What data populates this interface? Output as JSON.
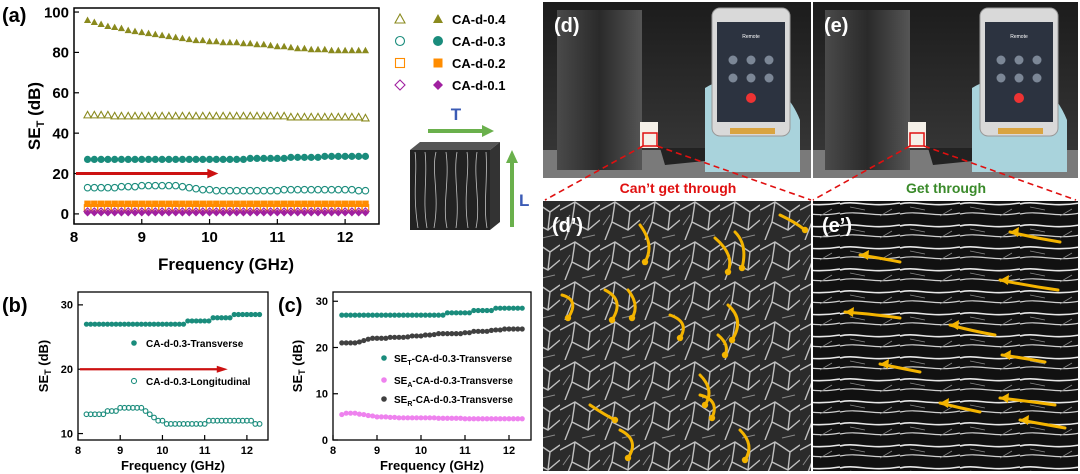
{
  "panel_labels": {
    "a": "(a)",
    "b": "(b)",
    "c": "(c)",
    "d": "(d)",
    "e": "(e)",
    "dp": "(d’)",
    "ep": "(e’)"
  },
  "annotations": {
    "cant_get_through": "Can’t get through",
    "get_through": "Get through",
    "arrow_T": "T",
    "arrow_L": "L"
  },
  "colors": {
    "olive": "#8a8a1e",
    "teal": "#1a8c7c",
    "orange": "#ff8c00",
    "purple": "#a020a0",
    "pink": "#ee82ee",
    "gray": "#404040",
    "red": "#cc1111",
    "green_arrow": "#6ab04c",
    "blue_T": "#3b5bb5",
    "cant_text": "#e01010",
    "get_text": "#3a8a2a",
    "sem_arrow": "#f4b400"
  },
  "chart_data": [
    {
      "id": "a",
      "type": "scatter",
      "xlabel": "Frequency (GHz)",
      "ylabel": "SE_T (dB)",
      "xlim": [
        8,
        12.5
      ],
      "ylim": [
        -5,
        102
      ],
      "xticks": [
        8,
        9,
        10,
        11,
        12
      ],
      "yticks": [
        0,
        20,
        40,
        60,
        80,
        100
      ],
      "x": [
        8.2,
        8.3,
        8.4,
        8.5,
        8.6,
        8.7,
        8.8,
        8.9,
        9.0,
        9.1,
        9.2,
        9.3,
        9.4,
        9.5,
        9.6,
        9.7,
        9.8,
        9.9,
        10.0,
        10.1,
        10.2,
        10.3,
        10.4,
        10.5,
        10.6,
        10.7,
        10.8,
        10.9,
        11.0,
        11.1,
        11.2,
        11.3,
        11.4,
        11.5,
        11.6,
        11.7,
        11.8,
        11.9,
        12.0,
        12.1,
        12.2,
        12.3
      ],
      "series": [
        {
          "name": "CA-d-0.4",
          "marker": "triangle",
          "filled": true,
          "color": "olive",
          "values": [
            96,
            95,
            94,
            93,
            92.5,
            92,
            91,
            90.5,
            90,
            89.5,
            89,
            88.5,
            88,
            87.5,
            87,
            86.5,
            86,
            86,
            85.5,
            85.5,
            85,
            85,
            85,
            84.5,
            84.5,
            84,
            84,
            83.5,
            83,
            83,
            82.5,
            82,
            82,
            81.5,
            81.5,
            81.5,
            81,
            81,
            81,
            81,
            81,
            81
          ]
        },
        {
          "name": "",
          "marker": "triangle",
          "filled": false,
          "color": "olive",
          "values": [
            49,
            49,
            49,
            49,
            48.5,
            48.5,
            48.5,
            48.5,
            48.5,
            48.5,
            48.5,
            48.5,
            48.5,
            48.5,
            48.5,
            48.5,
            48.5,
            48.5,
            48.5,
            48.5,
            48.5,
            48.5,
            48.5,
            48.5,
            48.5,
            48.5,
            48.5,
            48.5,
            48.5,
            48.5,
            48,
            48,
            48,
            48,
            48,
            48,
            48,
            48,
            48,
            48,
            48,
            47.5
          ]
        },
        {
          "name": "CA-d-0.3",
          "marker": "circle",
          "filled": true,
          "color": "teal",
          "values": [
            27,
            27,
            27,
            27,
            27,
            27,
            27,
            27,
            27,
            27,
            27,
            27,
            27,
            27,
            27,
            27,
            27,
            27,
            27,
            27,
            27,
            27,
            27,
            27,
            27.5,
            27.5,
            27.5,
            27.5,
            27.5,
            27.5,
            28,
            28,
            28,
            28,
            28,
            28.5,
            28.5,
            28.5,
            28.5,
            28.5,
            28.5,
            28.5
          ]
        },
        {
          "name": "",
          "marker": "circle",
          "filled": false,
          "color": "teal",
          "values": [
            13,
            13,
            13,
            13,
            13,
            13.5,
            13.5,
            13.5,
            14,
            14,
            14,
            14,
            14,
            14,
            13.5,
            13,
            12.5,
            12,
            12,
            11.5,
            11.5,
            11.5,
            11.5,
            11.5,
            11.5,
            11.5,
            11.5,
            11.5,
            11.5,
            12,
            12,
            12,
            12,
            12,
            12,
            12,
            12,
            12,
            12,
            12,
            11.5,
            11.5
          ]
        },
        {
          "name": "CA-d-0.2",
          "marker": "square",
          "filled": true,
          "color": "orange",
          "values": [
            5,
            5,
            5,
            5,
            5,
            5,
            5,
            5,
            5,
            5,
            5,
            5,
            5,
            5,
            5,
            5,
            5,
            5,
            5,
            5,
            5,
            5,
            5,
            5,
            5,
            5,
            5,
            5,
            5,
            5,
            5,
            5,
            5,
            5,
            5,
            5,
            5,
            5,
            5,
            5,
            5,
            5
          ]
        },
        {
          "name": "",
          "marker": "square",
          "filled": false,
          "color": "orange",
          "values": [
            3,
            3,
            3,
            3,
            3,
            3,
            3,
            3,
            3,
            3,
            3,
            3,
            3,
            3,
            3,
            3,
            3,
            3,
            3,
            3,
            3,
            3,
            3,
            3,
            3,
            3,
            3,
            3,
            3,
            3,
            3,
            3,
            3,
            3,
            3,
            3,
            3,
            3,
            3,
            3,
            3,
            3
          ]
        },
        {
          "name": "CA-d-0.1",
          "marker": "diamond",
          "filled": true,
          "color": "purple",
          "values": [
            0.5,
            0.5,
            0.5,
            0.5,
            0.5,
            0.5,
            0.5,
            0.5,
            0.5,
            0.5,
            0.5,
            0.5,
            0.5,
            0.5,
            0.5,
            0.5,
            0.5,
            0.5,
            0.5,
            0.5,
            0.5,
            0.5,
            0.5,
            0.5,
            0.5,
            0.5,
            0.5,
            0.5,
            0.5,
            0.5,
            0.5,
            0.5,
            0.5,
            0.5,
            0.5,
            0.5,
            0.5,
            0.5,
            0.5,
            0.5,
            0.5,
            0.5
          ]
        },
        {
          "name": "",
          "marker": "diamond",
          "filled": false,
          "color": "purple",
          "values": [
            1.2,
            1.2,
            1.2,
            1.2,
            1.2,
            1.2,
            1.2,
            1.2,
            1.2,
            1.2,
            1.2,
            1.2,
            1.2,
            1.2,
            1.2,
            1.2,
            1.2,
            1.2,
            1.2,
            1.2,
            1.2,
            1.2,
            1.2,
            1.2,
            1.2,
            1.2,
            1.2,
            1.2,
            1.2,
            1.2,
            1.2,
            1.2,
            1.2,
            1.2,
            1.2,
            1.2,
            1.2,
            1.2,
            1.2,
            1.2,
            1.2,
            1.2
          ]
        }
      ],
      "threshold_arrow": {
        "y": 20,
        "x_end": 10.1
      }
    },
    {
      "id": "b",
      "type": "scatter",
      "xlabel": "Frequency (GHz)",
      "ylabel": "SE_T (dB)",
      "xlim": [
        8,
        12.5
      ],
      "ylim": [
        9,
        32
      ],
      "xticks": [
        8,
        9,
        10,
        11,
        12
      ],
      "yticks": [
        10,
        20,
        30
      ],
      "x": [
        8.2,
        8.3,
        8.4,
        8.5,
        8.6,
        8.7,
        8.8,
        8.9,
        9.0,
        9.1,
        9.2,
        9.3,
        9.4,
        9.5,
        9.6,
        9.7,
        9.8,
        9.9,
        10.0,
        10.1,
        10.2,
        10.3,
        10.4,
        10.5,
        10.6,
        10.7,
        10.8,
        10.9,
        11.0,
        11.1,
        11.2,
        11.3,
        11.4,
        11.5,
        11.6,
        11.7,
        11.8,
        11.9,
        12.0,
        12.1,
        12.2,
        12.3
      ],
      "series": [
        {
          "name": "CA-d-0.3-Transverse",
          "marker": "circle",
          "filled": true,
          "color": "teal",
          "values": [
            27,
            27,
            27,
            27,
            27,
            27,
            27,
            27,
            27,
            27,
            27,
            27,
            27,
            27,
            27,
            27,
            27,
            27,
            27,
            27,
            27,
            27,
            27,
            27,
            27.5,
            27.5,
            27.5,
            27.5,
            27.5,
            27.5,
            28,
            28,
            28,
            28,
            28,
            28.5,
            28.5,
            28.5,
            28.5,
            28.5,
            28.5,
            28.5
          ]
        },
        {
          "name": "CA-d-0.3-Longitudinal",
          "marker": "circle",
          "filled": false,
          "color": "teal",
          "values": [
            13,
            13,
            13,
            13,
            13,
            13.5,
            13.5,
            13.5,
            14,
            14,
            14,
            14,
            14,
            14,
            13.5,
            13,
            12.5,
            12,
            12,
            11.5,
            11.5,
            11.5,
            11.5,
            11.5,
            11.5,
            11.5,
            11.5,
            11.5,
            11.5,
            12,
            12,
            12,
            12,
            12,
            12,
            12,
            12,
            12,
            12,
            12,
            11.5,
            11.5
          ]
        }
      ],
      "threshold_arrow": {
        "y": 20,
        "x_end": 11.5
      }
    },
    {
      "id": "c",
      "type": "scatter",
      "xlabel": "Frequency (GHz)",
      "ylabel": "SE_T (dB)",
      "xlim": [
        8,
        12.5
      ],
      "ylim": [
        0,
        32
      ],
      "xticks": [
        8,
        9,
        10,
        11,
        12
      ],
      "yticks": [
        0,
        10,
        20,
        30
      ],
      "x": [
        8.2,
        8.3,
        8.4,
        8.5,
        8.6,
        8.7,
        8.8,
        8.9,
        9.0,
        9.1,
        9.2,
        9.3,
        9.4,
        9.5,
        9.6,
        9.7,
        9.8,
        9.9,
        10.0,
        10.1,
        10.2,
        10.3,
        10.4,
        10.5,
        10.6,
        10.7,
        10.8,
        10.9,
        11.0,
        11.1,
        11.2,
        11.3,
        11.4,
        11.5,
        11.6,
        11.7,
        11.8,
        11.9,
        12.0,
        12.1,
        12.2,
        12.3
      ],
      "series": [
        {
          "name": "SE_T-CA-d-0.3-Transverse",
          "marker": "circle",
          "filled": true,
          "color": "teal",
          "values": [
            27,
            27,
            27,
            27,
            27,
            27,
            27,
            27,
            27,
            27,
            27,
            27,
            27,
            27,
            27,
            27,
            27,
            27,
            27,
            27,
            27,
            27,
            27,
            27,
            27.5,
            27.5,
            27.5,
            27.5,
            27.5,
            27.5,
            28,
            28,
            28,
            28,
            28,
            28.5,
            28.5,
            28.5,
            28.5,
            28.5,
            28.5,
            28.5
          ]
        },
        {
          "name": "SE_A-CA-d-0.3-Transverse",
          "marker": "circle",
          "filled": true,
          "color": "pink",
          "values": [
            5.5,
            5.8,
            5.8,
            5.8,
            5.6,
            5.5,
            5.3,
            5.2,
            5,
            5,
            5,
            4.9,
            4.9,
            4.8,
            4.8,
            4.8,
            4.8,
            4.8,
            4.8,
            4.8,
            4.8,
            4.8,
            4.7,
            4.7,
            4.7,
            4.7,
            4.7,
            4.7,
            4.6,
            4.6,
            4.6,
            4.6,
            4.6,
            4.6,
            4.6,
            4.6,
            4.6,
            4.6,
            4.6,
            4.6,
            4.6,
            4.6
          ]
        },
        {
          "name": "SE_R-CA-d-0.3-Transverse",
          "marker": "circle",
          "filled": true,
          "color": "gray",
          "values": [
            21,
            21,
            21,
            21,
            21.2,
            21.5,
            21.8,
            22,
            22,
            22,
            22,
            22.2,
            22.2,
            22.2,
            22.2,
            22.3,
            22.5,
            22.5,
            22.5,
            22.7,
            22.7,
            22.8,
            23,
            23,
            23,
            23,
            23,
            23,
            23.2,
            23.2,
            23.5,
            23.5,
            23.5,
            23.5,
            23.7,
            23.8,
            23.8,
            24,
            24,
            24,
            24,
            24
          ]
        }
      ]
    }
  ]
}
